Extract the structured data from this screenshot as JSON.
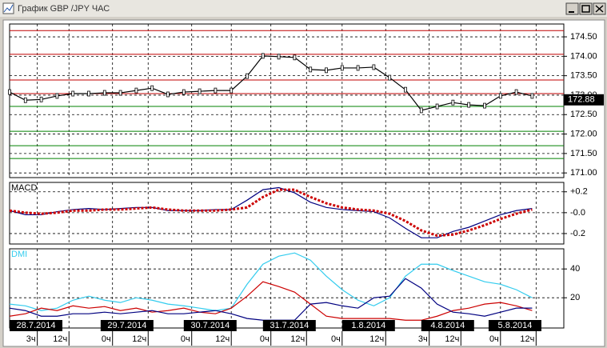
{
  "window_title": "График GBP /JPY ЧАС",
  "chart_data": [
    {
      "type": "line",
      "x": [
        0,
        4,
        8,
        12,
        16,
        20,
        24,
        28,
        32,
        36,
        40,
        44,
        48,
        52,
        56,
        60,
        64,
        68,
        72,
        76,
        80,
        84,
        88,
        92,
        96,
        100,
        104,
        108,
        112,
        116,
        120,
        124,
        128,
        132
      ],
      "series": [
        {
          "color": "#000000",
          "values": [
            173.08,
            172.87,
            172.89,
            172.98,
            173.04,
            173.04,
            173.06,
            173.06,
            173.12,
            173.18,
            173.02,
            173.08,
            173.1,
            173.12,
            173.12,
            173.49,
            174.01,
            173.99,
            173.97,
            173.66,
            173.64,
            173.7,
            173.7,
            173.72,
            173.45,
            173.14,
            172.61,
            172.71,
            172.81,
            172.75,
            172.73,
            172.98,
            173.08,
            172.98
          ]
        }
      ],
      "levels": [
        {
          "value": 174.66,
          "color": "#c00000"
        },
        {
          "value": 174.05,
          "color": "#c00000"
        },
        {
          "value": 173.39,
          "color": "#c00000"
        },
        {
          "value": 173.04,
          "color": "#c00000"
        },
        {
          "value": 172.71,
          "color": "#008000"
        },
        {
          "value": 172.07,
          "color": "#008000"
        },
        {
          "value": 171.7,
          "color": "#008000"
        },
        {
          "value": 171.37,
          "color": "#008000"
        }
      ],
      "last_price": 172.88,
      "xlim": [
        0,
        140
      ],
      "ylim": [
        170.88,
        174.83
      ],
      "yticks": [
        {
          "value": 174.5,
          "label": "174.50"
        },
        {
          "value": 174,
          "label": "174.00"
        },
        {
          "value": 173.5,
          "label": "173.50"
        },
        {
          "value": 173,
          "label": "173.00"
        },
        {
          "value": 172.5,
          "label": "172.50"
        },
        {
          "value": 172,
          "label": "172.00"
        },
        {
          "value": 171.5,
          "label": "171.50"
        },
        {
          "value": 171,
          "label": "171.00"
        }
      ],
      "grid": true
    },
    {
      "type": "line",
      "title": "MACD",
      "x": [
        0,
        4,
        8,
        12,
        16,
        20,
        24,
        28,
        32,
        36,
        40,
        44,
        48,
        52,
        56,
        60,
        64,
        68,
        72,
        76,
        80,
        84,
        88,
        92,
        96,
        100,
        104,
        108,
        112,
        116,
        120,
        124,
        128,
        132
      ],
      "series": [
        {
          "color": "#000080",
          "values": [
            0.02,
            -0.02,
            -0.02,
            0.01,
            0.03,
            0.04,
            0.03,
            0.04,
            0.05,
            0.05,
            0.02,
            0.02,
            0.02,
            0.03,
            0.03,
            0.12,
            0.22,
            0.24,
            0.19,
            0.1,
            0.05,
            0.03,
            0.02,
            0.01,
            -0.05,
            -0.15,
            -0.24,
            -0.24,
            -0.18,
            -0.14,
            -0.08,
            -0.02,
            0.02,
            0.04
          ]
        },
        {
          "color": "#cc0000",
          "values": [
            0.02,
            0.0,
            -0.01,
            0.0,
            0.02,
            0.02,
            0.03,
            0.03,
            0.04,
            0.05,
            0.03,
            0.02,
            0.02,
            0.02,
            0.03,
            0.05,
            0.15,
            0.22,
            0.22,
            0.15,
            0.09,
            0.05,
            0.03,
            0.02,
            -0.01,
            -0.08,
            -0.17,
            -0.22,
            -0.21,
            -0.17,
            -0.12,
            -0.06,
            -0.01,
            0.03
          ]
        }
      ],
      "xlim": [
        0,
        140
      ],
      "ylim": [
        -0.3,
        0.29
      ],
      "yticks": [
        {
          "value": 0.2,
          "label": "+0.2"
        },
        {
          "value": 0,
          "label": "-0.0"
        },
        {
          "value": -0.2,
          "label": "-0.2"
        }
      ],
      "grid": true
    },
    {
      "type": "line",
      "title": "DMI",
      "x": [
        0,
        4,
        8,
        12,
        16,
        20,
        24,
        28,
        32,
        36,
        40,
        44,
        48,
        52,
        56,
        60,
        64,
        68,
        72,
        76,
        80,
        84,
        88,
        92,
        96,
        100,
        104,
        108,
        112,
        116,
        120,
        124,
        128,
        132
      ],
      "series": [
        {
          "color": "#33ccee",
          "values": [
            15.6,
            14.4,
            11.1,
            12.8,
            18.3,
            21.1,
            18.3,
            16.7,
            20,
            18.3,
            15.6,
            14.4,
            12.8,
            11.1,
            12.8,
            29.4,
            43.3,
            48.9,
            51.1,
            46.1,
            35,
            25.6,
            18.3,
            14.4,
            20,
            35,
            43.3,
            43.3,
            38.9,
            35,
            31.1,
            29.4,
            25.6,
            20
          ]
        },
        {
          "color": "#cc0000",
          "values": [
            7.2,
            8.9,
            12.8,
            11.1,
            14.4,
            12.8,
            13.9,
            11.1,
            12.8,
            10,
            11.1,
            12.8,
            10,
            8.9,
            12.8,
            21.1,
            31.1,
            27.8,
            23.9,
            15.6,
            7.2,
            5.6,
            5.6,
            5.6,
            5.6,
            4.4,
            4.4,
            7.2,
            11.1,
            12.8,
            15.6,
            16.7,
            14.4,
            11.1
          ]
        },
        {
          "color": "#000080",
          "values": [
            12.8,
            11.1,
            7.2,
            7.2,
            8.9,
            8.9,
            10,
            8.9,
            10,
            11.1,
            8.9,
            8.9,
            10,
            11.1,
            8.9,
            5.6,
            4.4,
            4.4,
            4.4,
            15.6,
            16.7,
            14.4,
            12.8,
            20,
            21.1,
            33.3,
            26.7,
            15.6,
            10,
            8.9,
            7.2,
            10,
            12.8,
            12.8
          ]
        }
      ],
      "xlim": [
        0,
        140
      ],
      "ylim": [
        -1,
        54
      ],
      "yticks": [
        40,
        20
      ],
      "xticks": [
        {
          "value": 0,
          "label": "28.7.2014"
        },
        {
          "value": 23,
          "label": "29.7.2014"
        },
        {
          "value": 44,
          "label": "30.7.2014"
        },
        {
          "value": 64,
          "label": "31.7.2014"
        },
        {
          "value": 84,
          "label": "1.8.2014"
        },
        {
          "value": 104,
          "label": "4.8.2014"
        },
        {
          "value": 121,
          "label": "5.8.2014"
        }
      ],
      "xticks_minor": [
        {
          "value": 7,
          "label": "3ч"
        },
        {
          "value": 15,
          "label": "12ч"
        },
        {
          "value": 26,
          "label": "0ч"
        },
        {
          "value": 35,
          "label": "12ч"
        },
        {
          "value": 46,
          "label": "0ч"
        },
        {
          "value": 56,
          "label": "12ч"
        },
        {
          "value": 66,
          "label": "0ч"
        },
        {
          "value": 75,
          "label": "12ч"
        },
        {
          "value": 84,
          "label": "0ч"
        },
        {
          "value": 95,
          "label": "12ч"
        },
        {
          "value": 106,
          "label": "3ч"
        },
        {
          "value": 114,
          "label": "12ч"
        },
        {
          "value": 124,
          "label": "0ч"
        },
        {
          "value": 133,
          "label": "12ч"
        }
      ],
      "grid": true
    }
  ]
}
